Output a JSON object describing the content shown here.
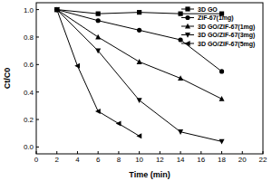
{
  "chart_data": {
    "type": "line",
    "x_label": "Time (min)",
    "y_label": "Ct/C0",
    "xlim": [
      0,
      22
    ],
    "xticks": [
      0,
      2,
      4,
      6,
      8,
      10,
      12,
      14,
      16,
      18,
      20,
      22
    ],
    "ylim": [
      -0.05,
      1.05
    ],
    "yticks": [
      {
        "value": 0,
        "label": "0.0"
      },
      {
        "value": 0.2,
        "label": "0.2"
      },
      {
        "value": 0.4,
        "label": "0.4"
      },
      {
        "value": 0.6,
        "label": "0.6"
      },
      {
        "value": 0.8,
        "label": "0.8"
      },
      {
        "value": 1,
        "label": "1.0"
      }
    ],
    "legend": "top-right",
    "series": [
      {
        "name": "3D GO",
        "color": "#000000",
        "marker": "square",
        "x": [
          2,
          6,
          10,
          14,
          18
        ],
        "values": [
          1.0,
          0.97,
          0.98,
          0.97,
          0.97
        ]
      },
      {
        "name": "ZIF-67(1mg)",
        "color": "#000000",
        "marker": "circle",
        "x": [
          2,
          6,
          10,
          14,
          18
        ],
        "values": [
          1.0,
          0.92,
          0.85,
          0.78,
          0.55
        ]
      },
      {
        "name": "3D GO/ZIF-67(1mg)",
        "color": "#000000",
        "marker": "triangle-up",
        "x": [
          2,
          6,
          10,
          14,
          18
        ],
        "values": [
          1.0,
          0.8,
          0.62,
          0.5,
          0.35
        ]
      },
      {
        "name": "3D GO/ZIF-67(3mg)",
        "color": "#000000",
        "marker": "triangle-down",
        "x": [
          2,
          6,
          10,
          14,
          18
        ],
        "values": [
          1.0,
          0.7,
          0.34,
          0.11,
          0.04
        ]
      },
      {
        "name": "3D GO/ZIF-67(5mg)",
        "color": "#000000",
        "marker": "triangle-left",
        "x": [
          2,
          4,
          6,
          8,
          10
        ],
        "values": [
          1.0,
          0.59,
          0.26,
          0.17,
          0.08
        ]
      }
    ]
  }
}
